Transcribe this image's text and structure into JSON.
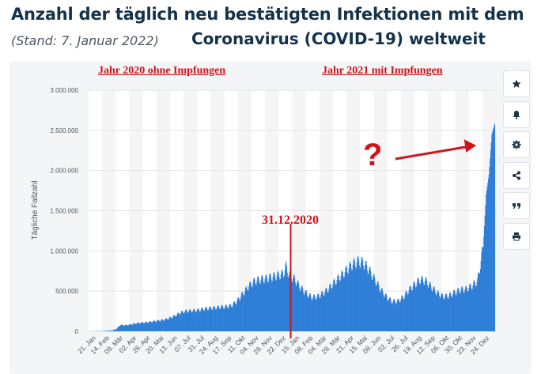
{
  "header": {
    "title_line1": "Anzahl der täglich neu bestätigten Infektionen mit dem",
    "title_line2_stand": "(Stand: 7. Januar 2022)",
    "title_line2_main": "Coronavirus (COVID-19) weltweit"
  },
  "annotations": {
    "label_2020": "Jahr 2020 ohne Impfungen",
    "label_2021": "Jahr 2021 mit Impfungen",
    "date_marker": "31.12.2020",
    "question_mark": "?"
  },
  "sidebar_icons": [
    "star-icon",
    "bell-icon",
    "gear-icon",
    "share-icon",
    "quote-icon",
    "print-icon"
  ],
  "colors": {
    "bar": "#2f7fd8",
    "accent": "#d0121b",
    "title": "#14324b"
  },
  "chart_data": {
    "type": "bar",
    "ylabel": "Tägliche Fallzahl",
    "ylim": [
      0,
      3000000
    ],
    "yticks": [
      0,
      500000,
      1000000,
      1500000,
      2000000,
      2500000,
      3000000
    ],
    "ytick_labels": [
      "0",
      "500.000",
      "1.000.000",
      "1.500.000",
      "2.000.000",
      "2.500.000",
      "3.000.000"
    ],
    "xtick_labels": [
      "21. Jan",
      "14. Feb",
      "09. Mär",
      "02. Apr",
      "26. Apr",
      "20. Mai",
      "13. Jun",
      "07. Jul",
      "31. Jul",
      "24. Aug",
      "17. Sep",
      "11. Okt",
      "04. Nov",
      "28. Nov",
      "22. Dez",
      "15. Jan",
      "08. Feb",
      "04. Mär",
      "28. Mär",
      "21. Apr",
      "15. Mai",
      "08. Jun",
      "02. Jul",
      "26. Jul",
      "19. Aug",
      "12. Sep",
      "06. Okt",
      "30. Okt",
      "23. Nov",
      "24. Dez"
    ],
    "grid": true,
    "series": [
      {
        "values": [
          [
            0,
            0
          ],
          [
            20,
            2000
          ],
          [
            40,
            10000
          ],
          [
            48,
            28000
          ],
          [
            55,
            80000
          ],
          [
            62,
            75000
          ],
          [
            70,
            80000
          ],
          [
            80,
            95000
          ],
          [
            90,
            105000
          ],
          [
            100,
            110000
          ],
          [
            110,
            120000
          ],
          [
            120,
            130000
          ],
          [
            130,
            140000
          ],
          [
            140,
            160000
          ],
          [
            150,
            190000
          ],
          [
            160,
            230000
          ],
          [
            170,
            250000
          ],
          [
            180,
            255000
          ],
          [
            190,
            260000
          ],
          [
            200,
            275000
          ],
          [
            210,
            285000
          ],
          [
            220,
            290000
          ],
          [
            230,
            300000
          ],
          [
            240,
            305000
          ],
          [
            250,
            320000
          ],
          [
            260,
            380000
          ],
          [
            270,
            470000
          ],
          [
            280,
            560000
          ],
          [
            290,
            620000
          ],
          [
            300,
            640000
          ],
          [
            310,
            650000
          ],
          [
            320,
            670000
          ],
          [
            330,
            690000
          ],
          [
            340,
            710000
          ],
          [
            345,
            800000
          ],
          [
            350,
            700000
          ],
          [
            360,
            640000
          ],
          [
            370,
            540000
          ],
          [
            380,
            470000
          ],
          [
            390,
            420000
          ],
          [
            400,
            430000
          ],
          [
            410,
            470000
          ],
          [
            420,
            530000
          ],
          [
            430,
            610000
          ],
          [
            440,
            680000
          ],
          [
            450,
            750000
          ],
          [
            460,
            820000
          ],
          [
            470,
            860000
          ],
          [
            480,
            850000
          ],
          [
            490,
            760000
          ],
          [
            500,
            640000
          ],
          [
            510,
            520000
          ],
          [
            520,
            430000
          ],
          [
            530,
            370000
          ],
          [
            540,
            370000
          ],
          [
            550,
            420000
          ],
          [
            560,
            510000
          ],
          [
            570,
            580000
          ],
          [
            580,
            640000
          ],
          [
            590,
            620000
          ],
          [
            600,
            540000
          ],
          [
            610,
            470000
          ],
          [
            620,
            430000
          ],
          [
            630,
            440000
          ],
          [
            640,
            480000
          ],
          [
            650,
            510000
          ],
          [
            660,
            520000
          ],
          [
            670,
            560000
          ],
          [
            680,
            620000
          ],
          [
            690,
            1050000
          ],
          [
            695,
            1700000
          ],
          [
            700,
            1950000
          ],
          [
            705,
            2450000
          ],
          [
            710,
            2580000
          ]
        ]
      }
    ]
  }
}
